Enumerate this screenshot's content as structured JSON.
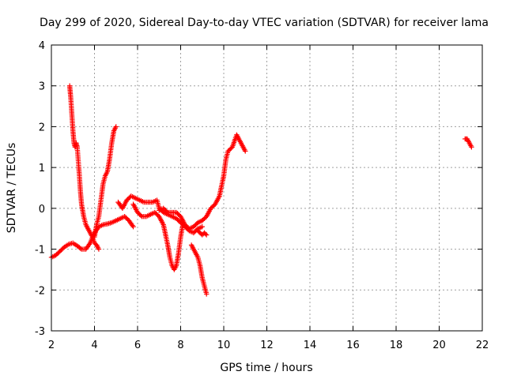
{
  "chart_data": {
    "type": "scatter",
    "title": "Day 299 of 2020, Sidereal Day-to-day VTEC variation (SDTVAR) for receiver lama",
    "xlabel": "GPS time / hours",
    "ylabel": "SDTVAR / TECUs",
    "xlim": [
      2,
      22
    ],
    "ylim": [
      -3,
      4
    ],
    "xticks": [
      "2",
      "4",
      "6",
      "8",
      "10",
      "12",
      "14",
      "16",
      "18",
      "20",
      "22"
    ],
    "yticks": [
      "-3",
      "-2",
      "-1",
      "0",
      "1",
      "2",
      "3",
      "4"
    ],
    "grid": true,
    "marker": "plus",
    "color": "#ff0000",
    "segments": [
      [
        [
          2.0,
          -1.2
        ],
        [
          2.2,
          -1.15
        ],
        [
          2.4,
          -1.05
        ],
        [
          2.6,
          -0.95
        ],
        [
          2.8,
          -0.88
        ],
        [
          3.0,
          -0.85
        ],
        [
          3.2,
          -0.92
        ],
        [
          3.4,
          -1.0
        ],
        [
          3.6,
          -1.0
        ],
        [
          3.8,
          -0.85
        ],
        [
          4.0,
          -0.6
        ],
        [
          4.2,
          -0.45
        ],
        [
          4.4,
          -0.4
        ],
        [
          4.6,
          -0.38
        ],
        [
          4.8,
          -0.35
        ],
        [
          5.0,
          -0.3
        ],
        [
          5.2,
          -0.25
        ],
        [
          5.4,
          -0.2
        ],
        [
          5.6,
          -0.3
        ],
        [
          5.8,
          -0.45
        ]
      ],
      [
        [
          2.85,
          3.0
        ],
        [
          2.9,
          2.7
        ],
        [
          2.95,
          2.3
        ],
        [
          3.0,
          1.9
        ],
        [
          3.05,
          1.6
        ],
        [
          3.1,
          1.5
        ],
        [
          3.15,
          1.6
        ],
        [
          3.2,
          1.5
        ],
        [
          3.3,
          0.8
        ],
        [
          3.35,
          0.4
        ],
        [
          3.4,
          0.1
        ],
        [
          3.5,
          -0.2
        ],
        [
          3.6,
          -0.4
        ],
        [
          3.7,
          -0.5
        ],
        [
          3.8,
          -0.6
        ],
        [
          3.9,
          -0.7
        ],
        [
          4.0,
          -0.85
        ],
        [
          4.1,
          -0.9
        ],
        [
          4.2,
          -1.0
        ]
      ],
      [
        [
          4.0,
          -0.7
        ],
        [
          4.1,
          -0.4
        ],
        [
          4.2,
          -0.2
        ],
        [
          4.3,
          0.2
        ],
        [
          4.4,
          0.6
        ],
        [
          4.5,
          0.8
        ],
        [
          4.6,
          0.9
        ],
        [
          4.7,
          1.2
        ],
        [
          4.8,
          1.6
        ],
        [
          4.9,
          1.9
        ],
        [
          5.0,
          2.0
        ]
      ],
      [
        [
          5.1,
          0.15
        ],
        [
          5.3,
          0.0
        ],
        [
          5.5,
          0.2
        ],
        [
          5.7,
          0.3
        ],
        [
          5.9,
          0.25
        ],
        [
          6.1,
          0.2
        ],
        [
          6.3,
          0.15
        ],
        [
          6.5,
          0.15
        ],
        [
          6.7,
          0.15
        ],
        [
          6.9,
          0.2
        ],
        [
          7.0,
          0.0
        ],
        [
          7.2,
          -0.1
        ],
        [
          7.4,
          -0.15
        ],
        [
          7.6,
          -0.2
        ],
        [
          7.8,
          -0.25
        ],
        [
          8.0,
          -0.35
        ],
        [
          8.2,
          -0.45
        ],
        [
          8.4,
          -0.55
        ],
        [
          8.6,
          -0.6
        ],
        [
          8.8,
          -0.5
        ],
        [
          9.0,
          -0.45
        ]
      ],
      [
        [
          5.8,
          0.1
        ],
        [
          6.0,
          -0.1
        ],
        [
          6.2,
          -0.2
        ],
        [
          6.4,
          -0.2
        ],
        [
          6.6,
          -0.15
        ],
        [
          6.8,
          -0.1
        ],
        [
          7.0,
          -0.2
        ],
        [
          7.2,
          -0.4
        ],
        [
          7.4,
          -0.9
        ],
        [
          7.5,
          -1.2
        ],
        [
          7.6,
          -1.4
        ],
        [
          7.7,
          -1.5
        ],
        [
          7.8,
          -1.4
        ],
        [
          7.9,
          -1.1
        ],
        [
          8.0,
          -0.7
        ],
        [
          8.1,
          -0.4
        ]
      ],
      [
        [
          7.0,
          -0.05
        ],
        [
          7.2,
          0.0
        ],
        [
          7.4,
          -0.1
        ],
        [
          7.6,
          -0.1
        ],
        [
          7.8,
          -0.1
        ],
        [
          8.0,
          -0.2
        ],
        [
          8.2,
          -0.4
        ],
        [
          8.4,
          -0.5
        ],
        [
          8.6,
          -0.45
        ],
        [
          8.8,
          -0.35
        ],
        [
          9.0,
          -0.3
        ],
        [
          9.2,
          -0.2
        ],
        [
          9.4,
          0.0
        ],
        [
          9.6,
          0.1
        ],
        [
          9.8,
          0.3
        ],
        [
          10.0,
          0.8
        ],
        [
          10.1,
          1.2
        ],
        [
          10.2,
          1.4
        ],
        [
          10.4,
          1.5
        ],
        [
          10.6,
          1.8
        ],
        [
          10.8,
          1.6
        ],
        [
          11.0,
          1.4
        ]
      ],
      [
        [
          8.5,
          -0.9
        ],
        [
          8.6,
          -1.0
        ],
        [
          8.7,
          -1.1
        ],
        [
          8.8,
          -1.2
        ],
        [
          8.9,
          -1.4
        ],
        [
          9.0,
          -1.7
        ],
        [
          9.1,
          -1.9
        ],
        [
          9.2,
          -2.1
        ]
      ],
      [
        [
          8.8,
          -0.55
        ],
        [
          8.9,
          -0.6
        ],
        [
          9.0,
          -0.65
        ],
        [
          9.1,
          -0.6
        ],
        [
          9.2,
          -0.65
        ]
      ],
      [
        [
          21.2,
          1.7
        ],
        [
          21.3,
          1.7
        ],
        [
          21.4,
          1.6
        ],
        [
          21.5,
          1.5
        ]
      ]
    ]
  }
}
